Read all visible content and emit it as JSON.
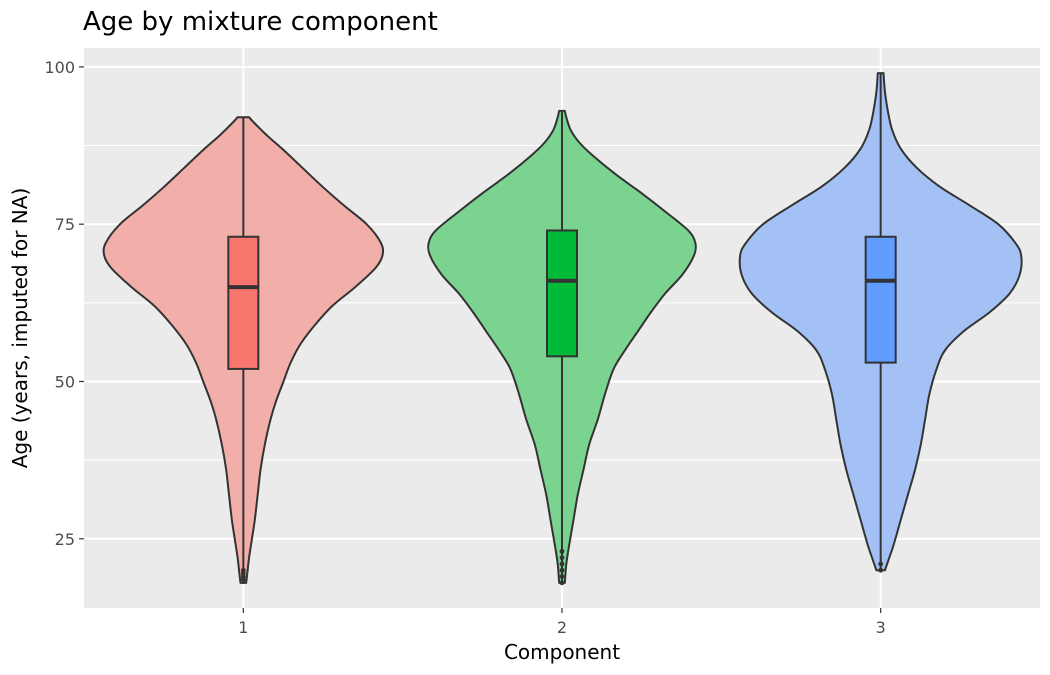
{
  "chart_data": {
    "type": "violin",
    "title": "Age by mixture component",
    "xlabel": "Component",
    "ylabel": "Age (years, imputed for NA)",
    "categories": [
      "1",
      "2",
      "3"
    ],
    "ylim": [
      14,
      103
    ],
    "yticks": [
      25,
      50,
      75,
      100
    ],
    "grid": true,
    "legend": "none",
    "colors": {
      "panel": "#ebebeb",
      "outline": "#333333",
      "violin_fill": [
        "#f2aea9",
        "#7ad48f",
        "#a3c1f5"
      ],
      "box_fill": [
        "#f8766d",
        "#00ba38",
        "#619cff"
      ]
    },
    "groups": [
      {
        "category": "1",
        "min": 18,
        "max": 92,
        "box": {
          "whisker_low": 18,
          "q1": 52,
          "median": 65,
          "q3": 73,
          "whisker_high": 92
        },
        "outliers": [
          18.5,
          19,
          19.5,
          20
        ],
        "density": [
          [
            18,
            0.02
          ],
          [
            20,
            0.03
          ],
          [
            22,
            0.04
          ],
          [
            25,
            0.06
          ],
          [
            28,
            0.08
          ],
          [
            32,
            0.1
          ],
          [
            36,
            0.12
          ],
          [
            40,
            0.15
          ],
          [
            44,
            0.19
          ],
          [
            47,
            0.23
          ],
          [
            50,
            0.28
          ],
          [
            53,
            0.33
          ],
          [
            56,
            0.4
          ],
          [
            59,
            0.5
          ],
          [
            62,
            0.62
          ],
          [
            65,
            0.78
          ],
          [
            68,
            0.92
          ],
          [
            70,
            0.97
          ],
          [
            72,
            0.96
          ],
          [
            75,
            0.86
          ],
          [
            78,
            0.7
          ],
          [
            81,
            0.55
          ],
          [
            84,
            0.41
          ],
          [
            87,
            0.27
          ],
          [
            89,
            0.17
          ],
          [
            91,
            0.08
          ],
          [
            92,
            0.04
          ]
        ]
      },
      {
        "category": "2",
        "min": 18,
        "max": 93,
        "box": {
          "whisker_low": 18,
          "q1": 54,
          "median": 66,
          "q3": 74,
          "whisker_high": 93
        },
        "outliers": [
          18,
          19,
          20,
          21,
          22,
          23
        ],
        "density": [
          [
            18,
            0.02
          ],
          [
            21,
            0.03
          ],
          [
            24,
            0.05
          ],
          [
            28,
            0.08
          ],
          [
            32,
            0.11
          ],
          [
            36,
            0.15
          ],
          [
            40,
            0.19
          ],
          [
            44,
            0.25
          ],
          [
            48,
            0.3
          ],
          [
            52,
            0.36
          ],
          [
            55,
            0.44
          ],
          [
            58,
            0.53
          ],
          [
            61,
            0.62
          ],
          [
            64,
            0.72
          ],
          [
            67,
            0.84
          ],
          [
            70,
            0.92
          ],
          [
            72,
            0.93
          ],
          [
            74,
            0.88
          ],
          [
            77,
            0.72
          ],
          [
            80,
            0.55
          ],
          [
            83,
            0.37
          ],
          [
            86,
            0.21
          ],
          [
            88,
            0.12
          ],
          [
            90,
            0.06
          ],
          [
            92,
            0.03
          ],
          [
            93,
            0.02
          ]
        ]
      },
      {
        "category": "3",
        "min": 20,
        "max": 99,
        "box": {
          "whisker_low": 20,
          "q1": 53,
          "median": 66,
          "q3": 73,
          "whisker_high": 99
        },
        "outliers": [
          20,
          21
        ],
        "density": [
          [
            20,
            0.03
          ],
          [
            22,
            0.06
          ],
          [
            24,
            0.09
          ],
          [
            28,
            0.14
          ],
          [
            32,
            0.19
          ],
          [
            36,
            0.24
          ],
          [
            40,
            0.28
          ],
          [
            44,
            0.31
          ],
          [
            48,
            0.34
          ],
          [
            52,
            0.39
          ],
          [
            55,
            0.45
          ],
          [
            58,
            0.58
          ],
          [
            61,
            0.76
          ],
          [
            64,
            0.9
          ],
          [
            67,
            0.97
          ],
          [
            70,
            0.98
          ],
          [
            72,
            0.94
          ],
          [
            75,
            0.82
          ],
          [
            78,
            0.62
          ],
          [
            81,
            0.41
          ],
          [
            84,
            0.25
          ],
          [
            87,
            0.14
          ],
          [
            90,
            0.08
          ],
          [
            93,
            0.05
          ],
          [
            96,
            0.03
          ],
          [
            99,
            0.02
          ]
        ]
      }
    ]
  }
}
